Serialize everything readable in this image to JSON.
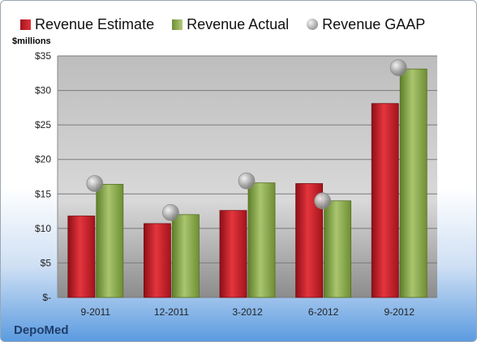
{
  "chart_data": {
    "type": "bar",
    "categories": [
      "9-2011",
      "12-2011",
      "3-2012",
      "6-2012",
      "9-2012"
    ],
    "series": [
      {
        "name": "Revenue Estimate",
        "type": "bar",
        "color": "#c8171f",
        "values": [
          11.8,
          10.7,
          12.6,
          16.5,
          28.1
        ]
      },
      {
        "name": "Revenue Actual",
        "type": "bar",
        "color": "#8fae52",
        "values": [
          16.4,
          12.0,
          16.6,
          14.0,
          33.1
        ]
      },
      {
        "name": "Revenue GAAP",
        "type": "scatter",
        "color": "#b0b0b0",
        "values": [
          16.5,
          12.3,
          16.9,
          14.0,
          33.3
        ]
      }
    ],
    "ylim": [
      0,
      35
    ],
    "yticks": [
      0,
      5,
      10,
      15,
      20,
      25,
      30,
      35
    ],
    "ytick_labels": [
      "$-",
      "$5",
      "$10",
      "$15",
      "$20",
      "$25",
      "$30",
      "$35"
    ],
    "ylabel": "$millions",
    "legend": "top",
    "grid": true
  },
  "footer": {
    "company": "DepoMed"
  }
}
